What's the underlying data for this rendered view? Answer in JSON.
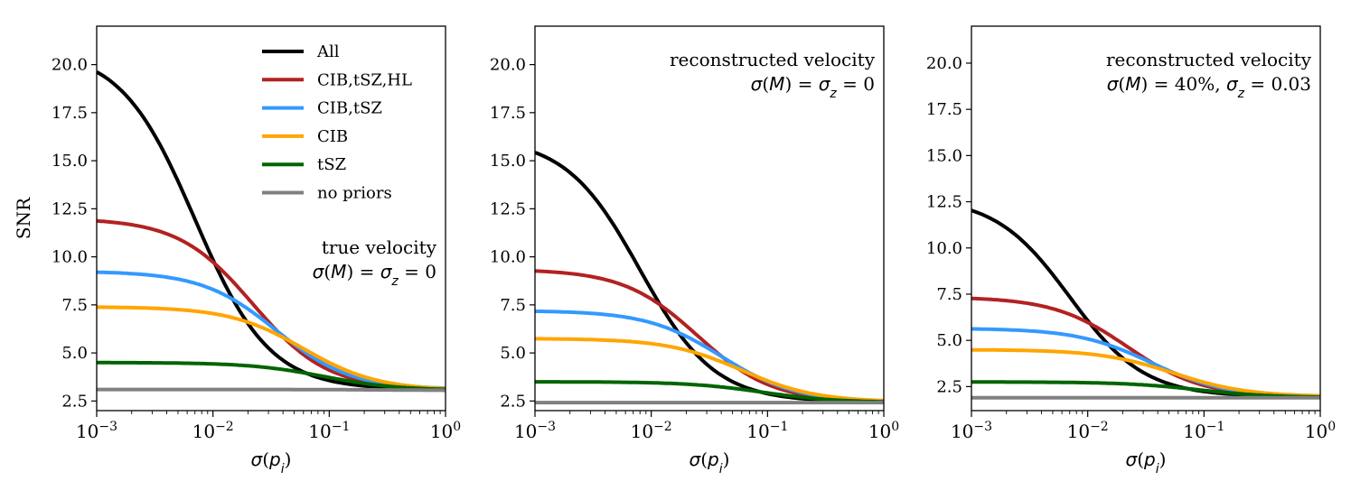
{
  "figure": {
    "legend_position": "upper-right of first panel"
  },
  "legend": [
    {
      "label": "All",
      "color": "#000000"
    },
    {
      "label": "CIB,tSZ,HL",
      "color": "#b22222"
    },
    {
      "label": "CIB,tSZ",
      "color": "#3399ff"
    },
    {
      "label": "CIB",
      "color": "#ffa500"
    },
    {
      "label": "tSZ",
      "color": "#006400"
    },
    {
      "label": "no priors",
      "color": "#808080"
    }
  ],
  "chart_data": [
    {
      "type": "line",
      "title": "",
      "annotation": [
        "true velocity",
        "σ(M) = σ_z = 0"
      ],
      "xlabel": "σ(p_i)",
      "ylabel": "SNR",
      "xscale": "log",
      "xlim": [
        0.001,
        1
      ],
      "ylim": [
        2.0,
        22.0
      ],
      "xticks": [
        0.001,
        0.01,
        0.1,
        1
      ],
      "xtick_labels": [
        {
          "base": "10",
          "exp": "−3"
        },
        {
          "base": "10",
          "exp": "−2"
        },
        {
          "base": "10",
          "exp": "−1"
        },
        {
          "base": "10",
          "exp": "0"
        }
      ],
      "yticks": [
        2.5,
        5.0,
        7.5,
        10.0,
        12.5,
        15.0,
        17.5,
        20.0
      ],
      "ytick_labels": [
        "2.5",
        "5.0",
        "7.5",
        "10.0",
        "12.5",
        "15.0",
        "17.5",
        "20.0"
      ],
      "grid": false,
      "series": [
        {
          "name": "All",
          "plateau": 20.8,
          "final": 3.1,
          "x0": 0.007
        },
        {
          "name": "CIB,tSZ,HL",
          "plateau": 12.0,
          "final": 3.1,
          "x0": 0.022
        },
        {
          "name": "CIB,tSZ",
          "plateau": 9.25,
          "final": 3.1,
          "x0": 0.035
        },
        {
          "name": "CIB",
          "plateau": 7.4,
          "final": 3.05,
          "x0": 0.06
        },
        {
          "name": "tSZ",
          "plateau": 4.5,
          "final": 3.05,
          "x0": 0.09
        },
        {
          "name": "no priors",
          "plateau": 3.1,
          "final": 3.05,
          "x0": 0.3
        }
      ]
    },
    {
      "type": "line",
      "title": "",
      "annotation": [
        "reconstructed velocity",
        "σ(M) = σ_z = 0"
      ],
      "xlabel": "σ(p_i)",
      "ylabel": "",
      "xscale": "log",
      "xlim": [
        0.001,
        1
      ],
      "ylim": [
        2.0,
        22.0
      ],
      "xticks": [
        0.001,
        0.01,
        0.1,
        1
      ],
      "xtick_labels": [
        {
          "base": "10",
          "exp": "−3"
        },
        {
          "base": "10",
          "exp": "−2"
        },
        {
          "base": "10",
          "exp": "−1"
        },
        {
          "base": "10",
          "exp": "0"
        }
      ],
      "yticks": [
        2.5,
        5.0,
        7.5,
        10.0,
        12.5,
        15.0,
        17.5,
        20.0
      ],
      "ytick_labels": [
        "2.5",
        "5.0",
        "7.5",
        "10.0",
        "12.5",
        "15.0",
        "17.5",
        "20.0"
      ],
      "grid": false,
      "series": [
        {
          "name": "All",
          "plateau": 16.2,
          "final": 2.45,
          "x0": 0.008
        },
        {
          "name": "CIB,tSZ,HL",
          "plateau": 9.35,
          "final": 2.45,
          "x0": 0.025
        },
        {
          "name": "CIB,tSZ",
          "plateau": 7.2,
          "final": 2.45,
          "x0": 0.04
        },
        {
          "name": "CIB",
          "plateau": 5.75,
          "final": 2.45,
          "x0": 0.06
        },
        {
          "name": "tSZ",
          "plateau": 3.5,
          "final": 2.42,
          "x0": 0.09
        },
        {
          "name": "no priors",
          "plateau": 2.42,
          "final": 2.42,
          "x0": 0.3
        }
      ]
    },
    {
      "type": "line",
      "title": "",
      "annotation": [
        "reconstructed velocity",
        "σ(M) = 40%, σ_z = 0.03"
      ],
      "xlabel": "σ(p_i)",
      "ylabel": "",
      "xscale": "log",
      "xlim": [
        0.001,
        1
      ],
      "ylim": [
        1.2,
        22.0
      ],
      "xticks": [
        0.001,
        0.01,
        0.1,
        1
      ],
      "xtick_labels": [
        {
          "base": "10",
          "exp": "−3"
        },
        {
          "base": "10",
          "exp": "−2"
        },
        {
          "base": "10",
          "exp": "−1"
        },
        {
          "base": "10",
          "exp": "0"
        }
      ],
      "yticks": [
        2.5,
        5.0,
        7.5,
        10.0,
        12.5,
        15.0,
        17.5,
        20.0
      ],
      "ytick_labels": [
        "2.5",
        "5.0",
        "7.5",
        "10.0",
        "12.5",
        "15.0",
        "17.5",
        "20.0"
      ],
      "grid": false,
      "series": [
        {
          "name": "All",
          "plateau": 12.75,
          "final": 1.95,
          "x0": 0.007
        },
        {
          "name": "CIB,tSZ,HL",
          "plateau": 7.35,
          "final": 1.95,
          "x0": 0.022
        },
        {
          "name": "CIB,tSZ",
          "plateau": 5.65,
          "final": 1.95,
          "x0": 0.035
        },
        {
          "name": "CIB",
          "plateau": 4.5,
          "final": 1.95,
          "x0": 0.055
        },
        {
          "name": "tSZ",
          "plateau": 2.75,
          "final": 1.9,
          "x0": 0.09
        },
        {
          "name": "no priors",
          "plateau": 1.9,
          "final": 1.9,
          "x0": 0.3
        }
      ]
    }
  ]
}
